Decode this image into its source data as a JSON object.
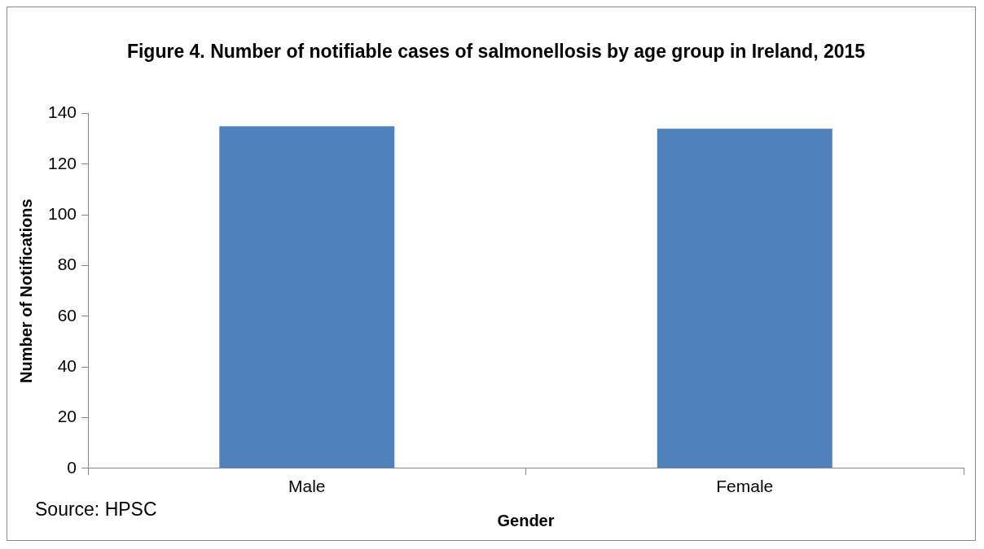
{
  "chart_data": {
    "type": "bar",
    "title": "Figure 4. Number of notifiable cases of salmonellosis by age group in Ireland, 2015",
    "xlabel": "Gender",
    "ylabel": "Number of Notifications",
    "categories": [
      "Male",
      "Female"
    ],
    "values": [
      135,
      134
    ],
    "color": "#4f81bd",
    "ylim": [
      0,
      140
    ],
    "yticks": [
      0,
      20,
      40,
      60,
      80,
      100,
      120,
      140
    ],
    "grid": false,
    "legend": false,
    "annotations": [
      "Source: HPSC"
    ]
  }
}
